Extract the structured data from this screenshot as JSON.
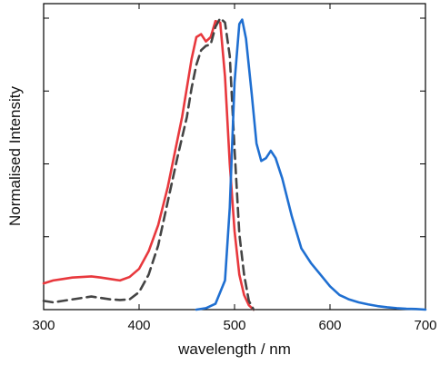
{
  "chart_data": {
    "type": "line",
    "title": "",
    "xlabel": "wavelength / nm",
    "ylabel": "Normalised Intensity",
    "xlim": [
      300,
      700
    ],
    "ylim": [
      0,
      1
    ],
    "x_ticks": [
      300,
      400,
      500,
      600,
      700
    ],
    "x_tick_labels": [
      "300",
      "400",
      "500",
      "600",
      "700"
    ],
    "y_ticks": [
      0.25,
      0.5,
      0.75,
      1.0
    ],
    "y_tick_labels_shown": false,
    "grid": false,
    "legend": "none",
    "series": [
      {
        "color": "#e8383d",
        "line_style": "solid",
        "points": [
          [
            300,
            0.09
          ],
          [
            310,
            0.1
          ],
          [
            320,
            0.105
          ],
          [
            330,
            0.11
          ],
          [
            340,
            0.112
          ],
          [
            350,
            0.114
          ],
          [
            360,
            0.11
          ],
          [
            370,
            0.105
          ],
          [
            380,
            0.1
          ],
          [
            390,
            0.112
          ],
          [
            400,
            0.14
          ],
          [
            410,
            0.2
          ],
          [
            420,
            0.29
          ],
          [
            430,
            0.42
          ],
          [
            440,
            0.58
          ],
          [
            445,
            0.66
          ],
          [
            450,
            0.76
          ],
          [
            455,
            0.86
          ],
          [
            460,
            0.935
          ],
          [
            465,
            0.945
          ],
          [
            470,
            0.92
          ],
          [
            475,
            0.935
          ],
          [
            480,
            0.99
          ],
          [
            485,
            0.985
          ],
          [
            490,
            0.8
          ],
          [
            495,
            0.5
          ],
          [
            500,
            0.27
          ],
          [
            505,
            0.12
          ],
          [
            510,
            0.05
          ],
          [
            515,
            0.015
          ],
          [
            520,
            0.0
          ]
        ]
      },
      {
        "color": "#444444",
        "line_style": "dashed",
        "points": [
          [
            300,
            0.03
          ],
          [
            310,
            0.025
          ],
          [
            320,
            0.03
          ],
          [
            330,
            0.035
          ],
          [
            340,
            0.04
          ],
          [
            350,
            0.045
          ],
          [
            360,
            0.04
          ],
          [
            370,
            0.035
          ],
          [
            380,
            0.033
          ],
          [
            390,
            0.035
          ],
          [
            400,
            0.06
          ],
          [
            410,
            0.12
          ],
          [
            420,
            0.22
          ],
          [
            430,
            0.37
          ],
          [
            440,
            0.52
          ],
          [
            450,
            0.66
          ],
          [
            455,
            0.76
          ],
          [
            460,
            0.84
          ],
          [
            465,
            0.89
          ],
          [
            470,
            0.905
          ],
          [
            475,
            0.91
          ],
          [
            480,
            0.97
          ],
          [
            485,
            1.0
          ],
          [
            490,
            0.985
          ],
          [
            495,
            0.87
          ],
          [
            500,
            0.55
          ],
          [
            505,
            0.26
          ],
          [
            510,
            0.12
          ],
          [
            515,
            0.03
          ],
          [
            520,
            0.0
          ]
        ]
      },
      {
        "color": "#1f6fd1",
        "line_style": "solid",
        "points": [
          [
            460,
            0.0
          ],
          [
            470,
            0.005
          ],
          [
            480,
            0.02
          ],
          [
            490,
            0.1
          ],
          [
            495,
            0.35
          ],
          [
            500,
            0.78
          ],
          [
            505,
            0.98
          ],
          [
            508,
            0.995
          ],
          [
            512,
            0.93
          ],
          [
            518,
            0.74
          ],
          [
            523,
            0.57
          ],
          [
            528,
            0.51
          ],
          [
            533,
            0.52
          ],
          [
            538,
            0.545
          ],
          [
            543,
            0.52
          ],
          [
            550,
            0.45
          ],
          [
            560,
            0.32
          ],
          [
            570,
            0.21
          ],
          [
            580,
            0.16
          ],
          [
            590,
            0.12
          ],
          [
            600,
            0.08
          ],
          [
            610,
            0.05
          ],
          [
            620,
            0.035
          ],
          [
            630,
            0.025
          ],
          [
            640,
            0.018
          ],
          [
            650,
            0.012
          ],
          [
            660,
            0.008
          ],
          [
            670,
            0.005
          ],
          [
            680,
            0.003
          ],
          [
            690,
            0.002
          ],
          [
            700,
            0.0
          ]
        ]
      }
    ]
  }
}
